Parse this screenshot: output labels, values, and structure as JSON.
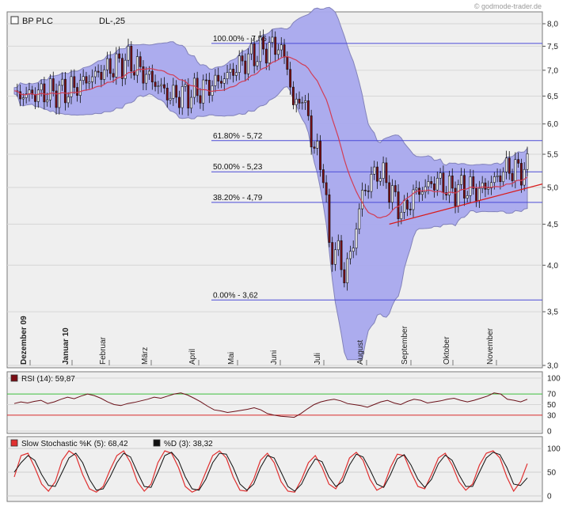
{
  "watermark": "© godmode-trader.de",
  "chart_data": [
    {
      "type": "candlestick",
      "title": "BP PLC",
      "subtitle": "DL-,25",
      "ylim": [
        3.0,
        8.0
      ],
      "yticks": [
        "8,0",
        "7,5",
        "7,0",
        "6,5",
        "6,0",
        "5,5",
        "5,0",
        "4,5",
        "4,0",
        "3,5",
        "3,0"
      ],
      "ytick_values": [
        8.0,
        7.5,
        7.0,
        6.5,
        6.0,
        5.5,
        5.0,
        4.5,
        4.0,
        3.5,
        3.0
      ],
      "x_labels": [
        "Dezember 09",
        "Januar 10",
        "Februar",
        "März",
        "April",
        "Mai",
        "Juni",
        "Juli",
        "August",
        "September",
        "Oktober",
        "November"
      ],
      "fibonacci": [
        {
          "label": "100.00% - 7,56",
          "value": 7.56
        },
        {
          "label": "61.80% - 5,72",
          "value": 5.72
        },
        {
          "label": "50.00% - 5,23",
          "value": 5.23
        },
        {
          "label": "38.20% - 4,79",
          "value": 4.79
        },
        {
          "label": "0.00% - 3,62",
          "value": 3.62
        }
      ],
      "price_path": [
        [
          0,
          6.5
        ],
        [
          8,
          6.55
        ],
        [
          18,
          6.6
        ],
        [
          30,
          7.0
        ],
        [
          38,
          7.2
        ],
        [
          45,
          6.85
        ],
        [
          52,
          6.5
        ],
        [
          60,
          6.55
        ],
        [
          70,
          6.85
        ],
        [
          78,
          7.25
        ],
        [
          84,
          7.45
        ],
        [
          88,
          7.52
        ],
        [
          91,
          7.1
        ],
        [
          93,
          6.3
        ],
        [
          96,
          6.5
        ],
        [
          100,
          5.6
        ],
        [
          103,
          5.25
        ],
        [
          105,
          4.2
        ],
        [
          108,
          4.15
        ],
        [
          110,
          3.88
        ],
        [
          113,
          4.25
        ],
        [
          116,
          4.9
        ],
        [
          118,
          5.05
        ],
        [
          121,
          5.25
        ],
        [
          124,
          5.1
        ],
        [
          127,
          4.8
        ],
        [
          130,
          4.65
        ],
        [
          133,
          4.9
        ],
        [
          137,
          5.0
        ],
        [
          141,
          5.1
        ],
        [
          146,
          4.95
        ],
        [
          150,
          5.0
        ],
        [
          155,
          4.95
        ],
        [
          160,
          5.1
        ],
        [
          164,
          5.28
        ],
        [
          168,
          5.25
        ],
        [
          171,
          5.28
        ]
      ],
      "trendline": {
        "start": [
          125,
          4.5
        ],
        "end": [
          180,
          5.05
        ]
      },
      "colors": {
        "band": "#a9a9ee",
        "band_edge": "#7d7db8",
        "ma": "#d23d55",
        "fib": "#4a4ad6",
        "trend": "#d91a1a",
        "up": "#ffffff",
        "down": "#7a0d14"
      }
    },
    {
      "type": "line",
      "title": "RSI (14): 59,87",
      "ylim": [
        0,
        100
      ],
      "yticks": [
        "100",
        "70",
        "50",
        "30",
        "0"
      ],
      "ytick_values": [
        100,
        70,
        50,
        30,
        0
      ],
      "levels": [
        {
          "value": 70,
          "color": "#3cbf3c"
        },
        {
          "value": 30,
          "color": "#d92a2a"
        }
      ],
      "values": [
        52,
        55,
        53,
        56,
        58,
        52,
        55,
        60,
        64,
        61,
        66,
        70,
        67,
        62,
        55,
        50,
        48,
        52,
        54,
        57,
        60,
        64,
        62,
        66,
        70,
        72,
        68,
        62,
        55,
        47,
        40,
        38,
        35,
        37,
        39,
        41,
        44,
        40,
        33,
        30,
        28,
        27,
        26,
        33,
        42,
        50,
        55,
        58,
        60,
        57,
        52,
        50,
        48,
        45,
        50,
        55,
        58,
        53,
        50,
        56,
        60,
        58,
        53,
        55,
        57,
        60,
        62,
        58,
        55,
        58,
        62,
        66,
        72,
        70,
        60,
        58,
        55,
        60
      ]
    },
    {
      "type": "line",
      "title": "Slow Stochastic %K (5): 68,42",
      "title2": "%D (3): 38,32",
      "ylim": [
        0,
        100
      ],
      "yticks": [
        "100",
        "50",
        "0"
      ],
      "ytick_values": [
        100,
        50,
        0
      ],
      "series": [
        {
          "name": "Slow Stochastic %K (5): 68,42",
          "color": "#e03030",
          "values": [
            40,
            85,
            90,
            60,
            25,
            10,
            30,
            75,
            95,
            85,
            45,
            15,
            8,
            20,
            55,
            85,
            95,
            70,
            30,
            10,
            25,
            70,
            95,
            90,
            60,
            20,
            8,
            15,
            50,
            85,
            95,
            80,
            40,
            12,
            10,
            35,
            75,
            90,
            70,
            30,
            10,
            8,
            35,
            70,
            85,
            60,
            25,
            15,
            40,
            80,
            92,
            75,
            35,
            12,
            20,
            60,
            88,
            85,
            50,
            20,
            15,
            45,
            80,
            90,
            65,
            30,
            12,
            25,
            65,
            90,
            95,
            80,
            40,
            10,
            30,
            68
          ]
        },
        {
          "name": "%D (3): 38,32",
          "color": "#111111",
          "values": [
            50,
            70,
            85,
            75,
            45,
            22,
            20,
            50,
            80,
            90,
            70,
            35,
            12,
            15,
            40,
            70,
            90,
            82,
            50,
            20,
            18,
            50,
            85,
            92,
            75,
            40,
            15,
            12,
            35,
            70,
            90,
            88,
            60,
            25,
            12,
            25,
            60,
            85,
            80,
            50,
            20,
            10,
            25,
            55,
            78,
            72,
            40,
            20,
            30,
            65,
            88,
            82,
            55,
            25,
            18,
            45,
            78,
            87,
            65,
            35,
            18,
            35,
            68,
            86,
            75,
            45,
            20,
            20,
            50,
            80,
            92,
            87,
            60,
            25,
            22,
            38
          ]
        }
      ]
    }
  ]
}
